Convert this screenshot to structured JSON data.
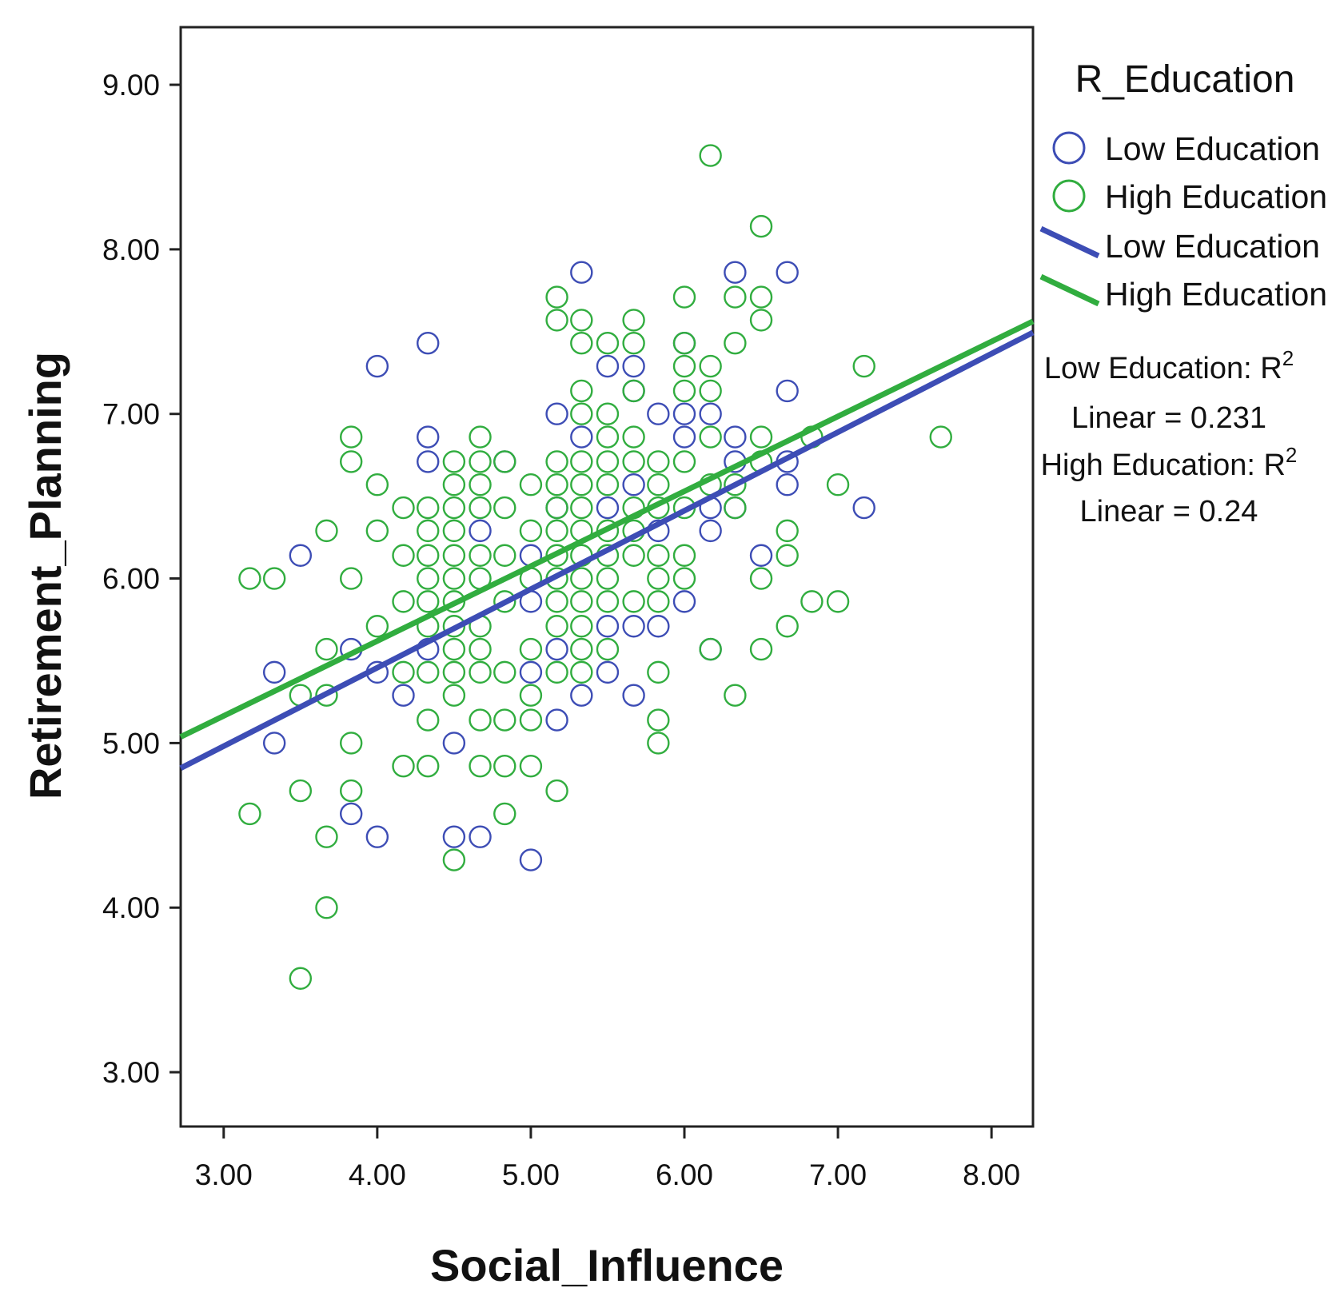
{
  "chart_data": {
    "type": "scatter",
    "xlabel": "Social_Influence",
    "ylabel": "Retirement_Planning",
    "xlim": [
      2.72,
      8.27
    ],
    "ylim": [
      2.67,
      9.35
    ],
    "xticks": [
      3,
      4,
      5,
      6,
      7,
      8
    ],
    "yticks": [
      3,
      4,
      5,
      6,
      7,
      8,
      9
    ],
    "xtick_labels": [
      "3.00",
      "4.00",
      "5.00",
      "6.00",
      "7.00",
      "8.00"
    ],
    "ytick_labels": [
      "3.00",
      "4.00",
      "5.00",
      "6.00",
      "7.00",
      "8.00",
      "9.00"
    ],
    "legend_title": "R_Education",
    "legend_placement": "right",
    "colors": {
      "low": "#3d4db5",
      "high": "#31ad3f"
    },
    "series": [
      {
        "name": "Low Education",
        "marker": "open-circle",
        "points": [
          [
            3.33,
            5.43
          ],
          [
            3.33,
            5.0
          ],
          [
            3.5,
            6.14
          ],
          [
            3.83,
            5.57
          ],
          [
            3.83,
            4.57
          ],
          [
            4.0,
            7.29
          ],
          [
            4.0,
            5.43
          ],
          [
            4.0,
            4.43
          ],
          [
            4.17,
            5.29
          ],
          [
            4.33,
            7.43
          ],
          [
            4.33,
            6.86
          ],
          [
            4.33,
            6.71
          ],
          [
            4.33,
            5.57
          ],
          [
            4.5,
            5.0
          ],
          [
            4.5,
            4.43
          ],
          [
            4.67,
            6.29
          ],
          [
            4.67,
            4.43
          ],
          [
            4.83,
            6.71
          ],
          [
            5.0,
            6.14
          ],
          [
            5.0,
            5.86
          ],
          [
            5.0,
            5.43
          ],
          [
            5.0,
            4.29
          ],
          [
            5.17,
            7.0
          ],
          [
            5.17,
            6.43
          ],
          [
            5.17,
            5.57
          ],
          [
            5.17,
            5.14
          ],
          [
            5.33,
            7.86
          ],
          [
            5.33,
            6.86
          ],
          [
            5.33,
            5.29
          ],
          [
            5.5,
            7.29
          ],
          [
            5.5,
            6.43
          ],
          [
            5.5,
            5.71
          ],
          [
            5.5,
            5.43
          ],
          [
            5.67,
            7.29
          ],
          [
            5.67,
            7.14
          ],
          [
            5.67,
            6.57
          ],
          [
            5.67,
            5.71
          ],
          [
            5.67,
            5.29
          ],
          [
            5.83,
            7.0
          ],
          [
            5.83,
            6.29
          ],
          [
            5.83,
            5.71
          ],
          [
            6.0,
            7.43
          ],
          [
            6.0,
            7.0
          ],
          [
            6.0,
            6.86
          ],
          [
            6.0,
            5.86
          ],
          [
            6.17,
            7.0
          ],
          [
            6.17,
            6.43
          ],
          [
            6.17,
            6.29
          ],
          [
            6.17,
            5.57
          ],
          [
            6.33,
            7.86
          ],
          [
            6.33,
            6.86
          ],
          [
            6.33,
            6.71
          ],
          [
            6.33,
            6.43
          ],
          [
            6.5,
            6.14
          ],
          [
            6.67,
            7.86
          ],
          [
            6.67,
            7.14
          ],
          [
            6.67,
            6.71
          ],
          [
            6.67,
            6.57
          ],
          [
            7.17,
            6.43
          ]
        ]
      },
      {
        "name": "High Education",
        "marker": "open-circle",
        "points": [
          [
            3.17,
            6.0
          ],
          [
            3.17,
            4.57
          ],
          [
            3.33,
            6.0
          ],
          [
            3.5,
            5.29
          ],
          [
            3.5,
            4.71
          ],
          [
            3.5,
            3.57
          ],
          [
            3.67,
            6.29
          ],
          [
            3.67,
            5.57
          ],
          [
            3.67,
            5.29
          ],
          [
            3.67,
            4.43
          ],
          [
            3.67,
            4.0
          ],
          [
            3.83,
            6.86
          ],
          [
            3.83,
            6.71
          ],
          [
            3.83,
            6.0
          ],
          [
            3.83,
            5.0
          ],
          [
            3.83,
            4.71
          ],
          [
            4.0,
            6.57
          ],
          [
            4.0,
            6.29
          ],
          [
            4.0,
            5.71
          ],
          [
            4.17,
            6.43
          ],
          [
            4.17,
            6.14
          ],
          [
            4.17,
            5.86
          ],
          [
            4.17,
            5.43
          ],
          [
            4.17,
            4.86
          ],
          [
            4.33,
            6.43
          ],
          [
            4.33,
            6.29
          ],
          [
            4.33,
            6.14
          ],
          [
            4.33,
            6.0
          ],
          [
            4.33,
            5.86
          ],
          [
            4.33,
            5.71
          ],
          [
            4.33,
            5.43
          ],
          [
            4.33,
            5.14
          ],
          [
            4.33,
            4.86
          ],
          [
            4.5,
            6.71
          ],
          [
            4.5,
            6.57
          ],
          [
            4.5,
            6.43
          ],
          [
            4.5,
            6.29
          ],
          [
            4.5,
            6.14
          ],
          [
            4.5,
            6.0
          ],
          [
            4.5,
            5.86
          ],
          [
            4.5,
            5.71
          ],
          [
            4.5,
            5.57
          ],
          [
            4.5,
            5.43
          ],
          [
            4.5,
            5.29
          ],
          [
            4.5,
            4.29
          ],
          [
            4.67,
            6.86
          ],
          [
            4.67,
            6.71
          ],
          [
            4.67,
            6.57
          ],
          [
            4.67,
            6.43
          ],
          [
            4.67,
            6.14
          ],
          [
            4.67,
            6.0
          ],
          [
            4.67,
            5.71
          ],
          [
            4.67,
            5.57
          ],
          [
            4.67,
            5.43
          ],
          [
            4.67,
            5.14
          ],
          [
            4.67,
            4.86
          ],
          [
            4.83,
            6.71
          ],
          [
            4.83,
            6.43
          ],
          [
            4.83,
            6.14
          ],
          [
            4.83,
            5.86
          ],
          [
            4.83,
            5.43
          ],
          [
            4.83,
            5.14
          ],
          [
            4.83,
            4.86
          ],
          [
            4.83,
            4.57
          ],
          [
            5.0,
            6.57
          ],
          [
            5.0,
            6.29
          ],
          [
            5.0,
            6.0
          ],
          [
            5.0,
            5.57
          ],
          [
            5.0,
            5.29
          ],
          [
            5.0,
            5.14
          ],
          [
            5.0,
            4.86
          ],
          [
            5.17,
            7.71
          ],
          [
            5.17,
            7.57
          ],
          [
            5.17,
            6.71
          ],
          [
            5.17,
            6.57
          ],
          [
            5.17,
            6.43
          ],
          [
            5.17,
            6.29
          ],
          [
            5.17,
            6.14
          ],
          [
            5.17,
            6.0
          ],
          [
            5.17,
            5.86
          ],
          [
            5.17,
            5.71
          ],
          [
            5.17,
            5.43
          ],
          [
            5.17,
            4.71
          ],
          [
            5.33,
            7.57
          ],
          [
            5.33,
            7.43
          ],
          [
            5.33,
            7.14
          ],
          [
            5.33,
            7.0
          ],
          [
            5.33,
            6.71
          ],
          [
            5.33,
            6.57
          ],
          [
            5.33,
            6.43
          ],
          [
            5.33,
            6.29
          ],
          [
            5.33,
            6.14
          ],
          [
            5.33,
            6.0
          ],
          [
            5.33,
            5.86
          ],
          [
            5.33,
            5.71
          ],
          [
            5.33,
            5.57
          ],
          [
            5.33,
            5.43
          ],
          [
            5.5,
            7.43
          ],
          [
            5.5,
            7.0
          ],
          [
            5.5,
            6.86
          ],
          [
            5.5,
            6.71
          ],
          [
            5.5,
            6.57
          ],
          [
            5.5,
            6.29
          ],
          [
            5.5,
            6.14
          ],
          [
            5.5,
            6.0
          ],
          [
            5.5,
            5.86
          ],
          [
            5.5,
            5.57
          ],
          [
            5.67,
            7.57
          ],
          [
            5.67,
            7.43
          ],
          [
            5.67,
            7.14
          ],
          [
            5.67,
            6.86
          ],
          [
            5.67,
            6.71
          ],
          [
            5.67,
            6.43
          ],
          [
            5.67,
            6.29
          ],
          [
            5.67,
            6.14
          ],
          [
            5.67,
            5.86
          ],
          [
            5.83,
            6.71
          ],
          [
            5.83,
            6.57
          ],
          [
            5.83,
            6.43
          ],
          [
            5.83,
            6.14
          ],
          [
            5.83,
            6.0
          ],
          [
            5.83,
            5.86
          ],
          [
            5.83,
            5.43
          ],
          [
            5.83,
            5.14
          ],
          [
            5.83,
            5.0
          ],
          [
            6.0,
            7.71
          ],
          [
            6.0,
            7.43
          ],
          [
            6.0,
            7.29
          ],
          [
            6.0,
            7.14
          ],
          [
            6.0,
            6.71
          ],
          [
            6.0,
            6.43
          ],
          [
            6.0,
            6.14
          ],
          [
            6.0,
            6.0
          ],
          [
            6.17,
            8.57
          ],
          [
            6.17,
            7.29
          ],
          [
            6.17,
            7.14
          ],
          [
            6.17,
            6.86
          ],
          [
            6.17,
            6.57
          ],
          [
            6.17,
            5.57
          ],
          [
            6.33,
            7.71
          ],
          [
            6.33,
            7.43
          ],
          [
            6.33,
            6.57
          ],
          [
            6.33,
            6.43
          ],
          [
            6.33,
            5.29
          ],
          [
            6.5,
            8.14
          ],
          [
            6.5,
            7.71
          ],
          [
            6.5,
            7.57
          ],
          [
            6.5,
            6.86
          ],
          [
            6.5,
            6.71
          ],
          [
            6.5,
            6.0
          ],
          [
            6.5,
            5.57
          ],
          [
            6.67,
            6.29
          ],
          [
            6.67,
            6.14
          ],
          [
            6.67,
            5.71
          ],
          [
            6.83,
            6.86
          ],
          [
            6.83,
            5.86
          ],
          [
            7.0,
            6.57
          ],
          [
            7.0,
            5.86
          ],
          [
            7.17,
            7.29
          ],
          [
            7.67,
            6.86
          ]
        ]
      }
    ],
    "fit_lines": [
      {
        "name": "Low Education",
        "type": "linear",
        "intercept": 3.55,
        "slope": 0.477
      },
      {
        "name": "High Education",
        "type": "linear",
        "intercept": 3.8,
        "slope": 0.455
      }
    ],
    "legend_entries": [
      {
        "label": "Low Education",
        "kind": "marker",
        "series": "low"
      },
      {
        "label": "High Education",
        "kind": "marker",
        "series": "high"
      },
      {
        "label": "Low Education",
        "kind": "line",
        "series": "low"
      },
      {
        "label": "High Education",
        "kind": "line",
        "series": "high"
      }
    ],
    "annotations": {
      "low_r2_label": "Low Education: R",
      "low_r2_value": "Linear = 0.231",
      "high_r2_label": "High Education: R",
      "high_r2_value": "Linear = 0.24",
      "superscript": "2"
    }
  }
}
